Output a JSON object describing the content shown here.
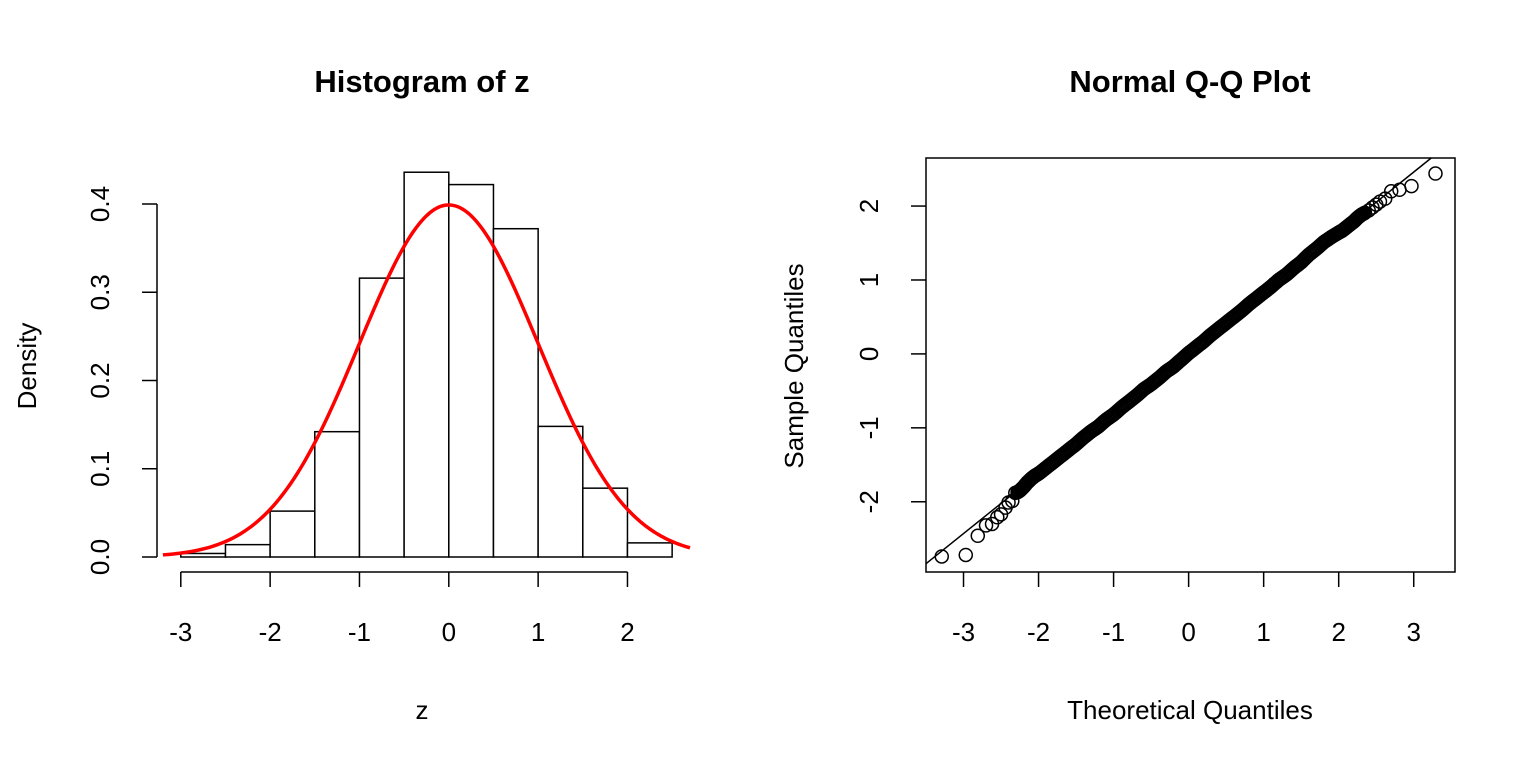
{
  "chart_data": [
    {
      "type": "histogram",
      "title": "Histogram of z",
      "xlabel": "z",
      "ylabel": "Density",
      "xlim": [
        -3.3,
        2.7
      ],
      "ylim": [
        0,
        0.44
      ],
      "x_ticks": [
        "-3",
        "-2",
        "-1",
        "0",
        "1",
        "2"
      ],
      "x_tick_values": [
        -3,
        -2,
        -1,
        0,
        1,
        2
      ],
      "y_ticks": [
        "0.0",
        "0.1",
        "0.2",
        "0.3",
        "0.4"
      ],
      "y_tick_values": [
        0,
        0.1,
        0.2,
        0.3,
        0.4
      ],
      "bins": [
        {
          "x0": -3.0,
          "x1": -2.5,
          "density": 0.004
        },
        {
          "x0": -2.5,
          "x1": -2.0,
          "density": 0.014
        },
        {
          "x0": -2.0,
          "x1": -1.5,
          "density": 0.052
        },
        {
          "x0": -1.5,
          "x1": -1.0,
          "density": 0.142
        },
        {
          "x0": -1.0,
          "x1": -0.5,
          "density": 0.316
        },
        {
          "x0": -0.5,
          "x1": 0.0,
          "density": 0.436
        },
        {
          "x0": 0.0,
          "x1": 0.5,
          "density": 0.422
        },
        {
          "x0": 0.5,
          "x1": 1.0,
          "density": 0.372
        },
        {
          "x0": 1.0,
          "x1": 1.5,
          "density": 0.148
        },
        {
          "x0": 1.5,
          "x1": 2.0,
          "density": 0.078
        },
        {
          "x0": 2.0,
          "x1": 2.5,
          "density": 0.016
        }
      ],
      "overlay": {
        "type": "line",
        "function": "normal_density",
        "mean": 0,
        "sd": 1,
        "x_range": [
          -3.2,
          2.7
        ],
        "color": "#ff0000"
      },
      "bar_fill": "#ffffff",
      "bar_stroke": "#000000",
      "grid": false
    },
    {
      "type": "scatter",
      "title": "Normal Q-Q Plot",
      "xlabel": "Theoretical Quantiles",
      "ylabel": "Sample Quantiles",
      "xlim": [
        -3.5,
        3.55
      ],
      "ylim": [
        -2.95,
        2.65
      ],
      "x_ticks": [
        "-3",
        "-2",
        "-1",
        "0",
        "1",
        "2",
        "3"
      ],
      "x_tick_values": [
        -3,
        -2,
        -1,
        0,
        1,
        2,
        3
      ],
      "y_ticks": [
        "-2",
        "-1",
        "0",
        "1",
        "2"
      ],
      "y_tick_values": [
        -2,
        -1,
        0,
        1,
        2
      ],
      "reference_line": {
        "intercept": 0.015,
        "slope": 0.815
      },
      "points": {
        "x": [
          -3.29,
          -2.97,
          -2.81,
          -2.7,
          -2.62,
          -2.55,
          -2.5,
          -2.44,
          -2.4,
          -2.35,
          -2.31,
          -2.28,
          -2.25,
          -2.2,
          -2.15,
          -2.1,
          -2.05,
          -2.0,
          -1.9,
          -1.8,
          -1.7,
          -1.6,
          -1.5,
          -1.4,
          -1.3,
          -1.2,
          -1.1,
          -1.0,
          -0.9,
          -0.8,
          -0.7,
          -0.6,
          -0.5,
          -0.4,
          -0.3,
          -0.2,
          -0.1,
          0.0,
          0.1,
          0.2,
          0.3,
          0.4,
          0.5,
          0.6,
          0.7,
          0.8,
          0.9,
          1.0,
          1.1,
          1.2,
          1.3,
          1.4,
          1.5,
          1.6,
          1.7,
          1.8,
          1.9,
          2.0,
          2.05,
          2.1,
          2.15,
          2.2,
          2.25,
          2.3,
          2.35,
          2.4,
          2.45,
          2.5,
          2.55,
          2.62,
          2.7,
          2.81,
          2.97,
          3.29
        ],
        "y": [
          -2.74,
          -2.72,
          -2.46,
          -2.32,
          -2.3,
          -2.21,
          -2.17,
          -2.08,
          -2.01,
          -1.99,
          -1.88,
          -1.87,
          -1.85,
          -1.8,
          -1.74,
          -1.69,
          -1.65,
          -1.62,
          -1.54,
          -1.46,
          -1.38,
          -1.3,
          -1.22,
          -1.13,
          -1.05,
          -0.98,
          -0.89,
          -0.82,
          -0.73,
          -0.65,
          -0.57,
          -0.48,
          -0.41,
          -0.33,
          -0.24,
          -0.17,
          -0.08,
          0.01,
          0.09,
          0.17,
          0.26,
          0.34,
          0.42,
          0.5,
          0.58,
          0.67,
          0.75,
          0.83,
          0.91,
          1.0,
          1.07,
          1.16,
          1.24,
          1.34,
          1.42,
          1.51,
          1.58,
          1.64,
          1.67,
          1.71,
          1.75,
          1.79,
          1.84,
          1.88,
          1.91,
          1.94,
          1.98,
          2.02,
          2.06,
          2.1,
          2.2,
          2.22,
          2.27,
          2.44
        ]
      },
      "marker": "open-circle",
      "grid": false
    }
  ]
}
